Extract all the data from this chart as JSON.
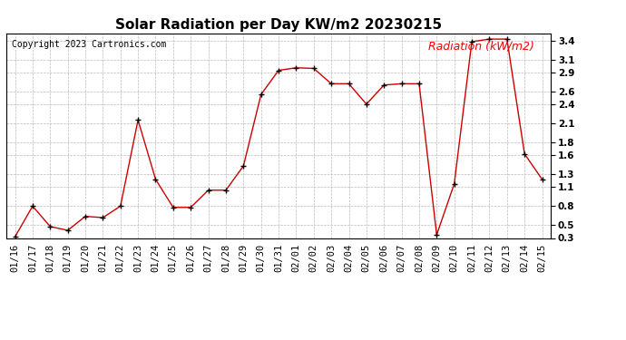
{
  "title": "Solar Radiation per Day KW/m2 20230215",
  "copyright": "Copyright 2023 Cartronics.com",
  "legend_label": "Radiation (kW/m2)",
  "dates": [
    "01/16",
    "01/17",
    "01/18",
    "01/19",
    "01/20",
    "01/21",
    "01/22",
    "01/23",
    "01/24",
    "01/25",
    "01/26",
    "01/27",
    "01/28",
    "01/29",
    "01/30",
    "01/31",
    "02/01",
    "02/02",
    "02/03",
    "02/04",
    "02/05",
    "02/06",
    "02/07",
    "02/08",
    "02/09",
    "02/10",
    "02/11",
    "02/12",
    "02/13",
    "02/14",
    "02/15"
  ],
  "values": [
    0.32,
    0.8,
    0.48,
    0.42,
    0.64,
    0.62,
    0.8,
    2.15,
    1.22,
    0.78,
    0.78,
    1.05,
    1.05,
    1.43,
    2.55,
    2.93,
    2.97,
    2.96,
    2.72,
    2.72,
    2.4,
    2.7,
    2.72,
    2.72,
    0.35,
    1.15,
    3.38,
    3.42,
    3.42,
    1.62,
    1.22
  ],
  "line_color": "#cc0000",
  "marker_color": "#000000",
  "background_color": "#ffffff",
  "grid_color": "#bbbbbb",
  "title_fontsize": 11,
  "copyright_fontsize": 7,
  "legend_fontsize": 9,
  "ylim": [
    0.3,
    3.5
  ],
  "yticks": [
    0.3,
    0.5,
    0.8,
    1.1,
    1.3,
    1.6,
    1.8,
    2.1,
    2.4,
    2.6,
    2.9,
    3.1,
    3.4
  ],
  "tick_fontsize": 7.5
}
